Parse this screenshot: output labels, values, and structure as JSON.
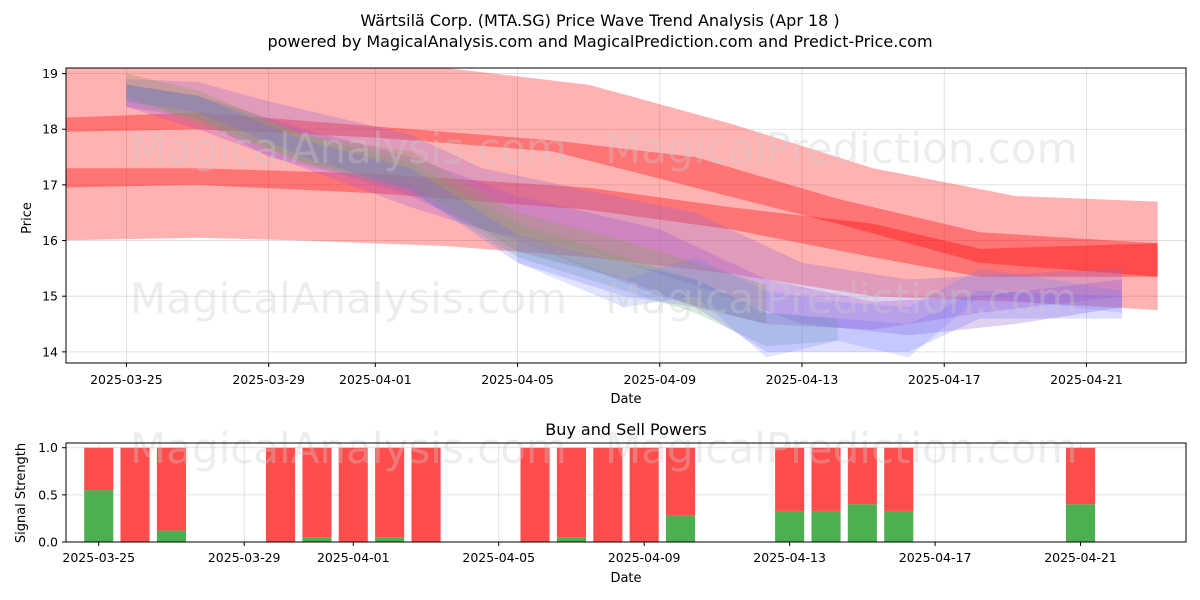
{
  "chart_data": [
    {
      "type": "area",
      "title": "Wärtsilä Corp. (MTA.SG) Price Wave Trend Analysis (Apr 18 )",
      "subtitle": "powered by MagicalAnalysis.com and MagicalPrediction.com and Predict-Price.com",
      "xlabel": "Date",
      "ylabel": "Price",
      "x_range": [
        "2025-03-23.3",
        "2025-04-23.8"
      ],
      "ylim": [
        13.8,
        19.1
      ],
      "x_ticks": [
        "2025-03-25",
        "2025-03-29",
        "2025-04-01",
        "2025-04-05",
        "2025-04-09",
        "2025-04-13",
        "2025-04-17",
        "2025-04-21"
      ],
      "y_ticks": [
        14,
        15,
        16,
        17,
        18,
        19
      ],
      "grid": true,
      "bands": [
        {
          "name": "red-wide",
          "color": "#ff0000",
          "opacity": 0.3,
          "x": [
            -1.0,
            3.0,
            6.0,
            10.0,
            14.0,
            18.0,
            22.0,
            26.0,
            30.0
          ],
          "upper": [
            19.1,
            19.2,
            19.2,
            19.1,
            18.8,
            18.1,
            17.3,
            16.8,
            16.7
          ],
          "lower": [
            16.0,
            16.05,
            16.0,
            15.9,
            15.7,
            15.4,
            15.0,
            14.9,
            14.75
          ]
        },
        {
          "name": "red-mid",
          "color": "#ff0000",
          "opacity": 0.35,
          "x": [
            -1.0,
            3.0,
            8.0,
            14.0,
            18.0,
            22.0,
            25.0,
            30.0
          ],
          "upper": [
            17.3,
            17.3,
            17.2,
            16.95,
            16.6,
            16.3,
            15.85,
            15.95
          ],
          "lower": [
            16.95,
            17.0,
            16.85,
            16.55,
            16.2,
            15.7,
            15.35,
            15.35
          ]
        },
        {
          "name": "red-top",
          "color": "#ff0000",
          "opacity": 0.35,
          "x": [
            -1.0,
            3.0,
            8.0,
            13.0,
            17.0,
            21.0,
            25.0,
            30.0
          ],
          "upper": [
            18.2,
            18.3,
            18.05,
            17.8,
            17.5,
            16.75,
            16.15,
            15.95
          ],
          "lower": [
            17.95,
            18.0,
            17.85,
            17.6,
            16.95,
            16.3,
            15.6,
            15.35
          ]
        },
        {
          "name": "purple-1",
          "color": "#9966cc",
          "opacity": 0.3,
          "x": [
            1.0,
            3.0,
            5.0,
            7.0,
            9.0,
            11.0,
            14.0,
            17.0,
            20.0,
            23.0,
            26.0,
            29.0
          ],
          "upper": [
            18.9,
            18.85,
            18.5,
            18.2,
            17.9,
            17.3,
            16.9,
            16.5,
            15.6,
            15.3,
            15.4,
            15.5
          ],
          "lower": [
            18.4,
            18.2,
            17.5,
            17.2,
            16.8,
            16.2,
            15.8,
            15.2,
            14.5,
            14.3,
            14.5,
            14.8
          ]
        },
        {
          "name": "purple-2",
          "color": "#aa55cc",
          "opacity": 0.3,
          "x": [
            1.0,
            3.0,
            6.0,
            9.0,
            12.0,
            16.0,
            19.0,
            22.0,
            25.0,
            29.0
          ],
          "upper": [
            18.8,
            18.6,
            18.0,
            17.5,
            16.8,
            16.2,
            15.3,
            14.9,
            15.0,
            15.3
          ],
          "lower": [
            18.4,
            18.0,
            17.3,
            16.6,
            16.0,
            15.0,
            14.5,
            14.4,
            14.7,
            15.0
          ]
        },
        {
          "name": "olive-1",
          "color": "#999966",
          "opacity": 0.35,
          "x": [
            1.0,
            3.0,
            6.0,
            9.0,
            12.0,
            15.0,
            17.0,
            19.0
          ],
          "upper": [
            19.0,
            18.7,
            17.9,
            17.6,
            16.5,
            16.0,
            15.6,
            15.2
          ],
          "lower": [
            18.6,
            18.1,
            17.4,
            17.0,
            15.8,
            15.3,
            14.8,
            14.5
          ]
        },
        {
          "name": "green-1",
          "color": "#66aa66",
          "opacity": 0.25,
          "x": [
            1.0,
            3.0,
            6.0,
            9.0,
            12.0,
            15.0,
            17.0,
            19.0,
            21.0
          ],
          "upper": [
            18.8,
            18.6,
            17.9,
            17.4,
            16.3,
            15.7,
            15.3,
            14.7,
            14.6
          ],
          "lower": [
            18.5,
            18.2,
            17.4,
            16.9,
            15.7,
            15.1,
            14.7,
            14.1,
            14.2
          ]
        },
        {
          "name": "blue-1",
          "color": "#6666ff",
          "opacity": 0.22,
          "x": [
            1.0,
            3.0,
            6.0,
            9.0,
            12.0,
            15.0,
            17.0,
            19.0,
            21.0,
            23.0,
            25.0,
            29.0
          ],
          "upper": [
            18.8,
            18.6,
            17.8,
            17.3,
            16.1,
            15.6,
            15.3,
            14.7,
            14.6,
            14.5,
            15.1,
            15.0
          ],
          "lower": [
            18.5,
            18.3,
            17.5,
            16.9,
            15.6,
            15.0,
            14.8,
            14.0,
            14.0,
            14.0,
            14.6,
            14.6
          ]
        },
        {
          "name": "blue-2",
          "color": "#6677ff",
          "opacity": 0.2,
          "x": [
            12.0,
            15.0,
            17.0,
            19.0,
            21.0,
            23.0,
            25.0,
            29.0
          ],
          "upper": [
            16.0,
            15.3,
            15.7,
            15.1,
            14.9,
            14.8,
            15.5,
            15.1
          ],
          "lower": [
            15.6,
            14.8,
            15.0,
            13.9,
            14.2,
            13.9,
            15.0,
            14.7
          ]
        }
      ]
    },
    {
      "type": "bar",
      "title": "Buy and Sell Powers",
      "xlabel": "Date",
      "ylabel": "Signal Strength",
      "ylim": [
        0,
        1.05
      ],
      "x_range": [
        "2025-03-24.1",
        "2025-04-23.9"
      ],
      "x_ticks": [
        "2025-03-25",
        "2025-03-29",
        "2025-04-01",
        "2025-04-05",
        "2025-04-09",
        "2025-04-13",
        "2025-04-17",
        "2025-04-21"
      ],
      "y_ticks": [
        "0.0",
        "0.5",
        "1.0"
      ],
      "grid": true,
      "days": [
        1,
        2,
        3,
        6,
        7,
        8,
        9,
        10,
        13,
        14,
        15,
        16,
        17,
        20,
        21,
        22,
        23,
        28
      ],
      "buy": [
        0.55,
        0.0,
        0.12,
        0.0,
        0.05,
        0.0,
        0.05,
        0.0,
        0.0,
        0.05,
        0.0,
        0.0,
        0.28,
        0.33,
        0.33,
        0.4,
        0.33,
        0.4
      ],
      "buy_color": "#4caf50",
      "sell_color": "#ff4c4c"
    }
  ],
  "watermarks": {
    "top_left": "MagicalAnalysis.com",
    "top_right": "MagicalPrediction.com",
    "mid_left": "MagicalAnalysis.com",
    "mid_right": "MagicalPrediction.com",
    "bottom_left": "MagicalAnalysis.com",
    "bottom_right": "MagicalPrediction.com"
  }
}
